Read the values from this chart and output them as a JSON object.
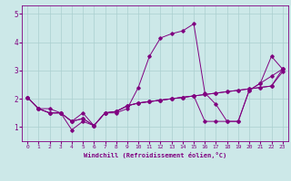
{
  "title": "",
  "xlabel": "Windchill (Refroidissement éolien,°C)",
  "ylabel": "",
  "background_color": "#cce8e8",
  "line_color": "#800080",
  "grid_color": "#aacfcf",
  "xlim": [
    -0.5,
    23.5
  ],
  "ylim": [
    0.5,
    5.3
  ],
  "yticks": [
    1,
    2,
    3,
    4,
    5
  ],
  "xticks": [
    0,
    1,
    2,
    3,
    4,
    5,
    6,
    7,
    8,
    9,
    10,
    11,
    12,
    13,
    14,
    15,
    16,
    17,
    18,
    19,
    20,
    21,
    22,
    23
  ],
  "series": [
    [
      2.05,
      1.65,
      1.65,
      1.5,
      0.9,
      1.2,
      1.05,
      1.5,
      1.5,
      1.65,
      2.4,
      3.5,
      4.15,
      4.3,
      4.4,
      4.65,
      2.2,
      1.8,
      1.2,
      1.2,
      2.3,
      2.55,
      3.5,
      3.05
    ],
    [
      2.05,
      1.65,
      1.5,
      1.5,
      1.2,
      1.5,
      1.05,
      1.5,
      1.55,
      1.75,
      1.85,
      1.9,
      1.95,
      2.0,
      2.05,
      2.1,
      2.15,
      2.2,
      2.25,
      2.3,
      2.35,
      2.4,
      2.45,
      2.95
    ],
    [
      2.05,
      1.65,
      1.5,
      1.5,
      1.2,
      1.3,
      1.05,
      1.5,
      1.55,
      1.75,
      1.85,
      1.9,
      1.95,
      2.0,
      2.05,
      2.1,
      2.15,
      2.2,
      2.25,
      2.3,
      2.35,
      2.4,
      2.45,
      3.05
    ],
    [
      2.05,
      1.65,
      1.5,
      1.5,
      1.2,
      1.3,
      1.05,
      1.5,
      1.55,
      1.75,
      1.85,
      1.9,
      1.95,
      2.0,
      2.05,
      2.1,
      1.2,
      1.2,
      1.2,
      1.2,
      2.3,
      2.55,
      2.8,
      3.05
    ]
  ]
}
